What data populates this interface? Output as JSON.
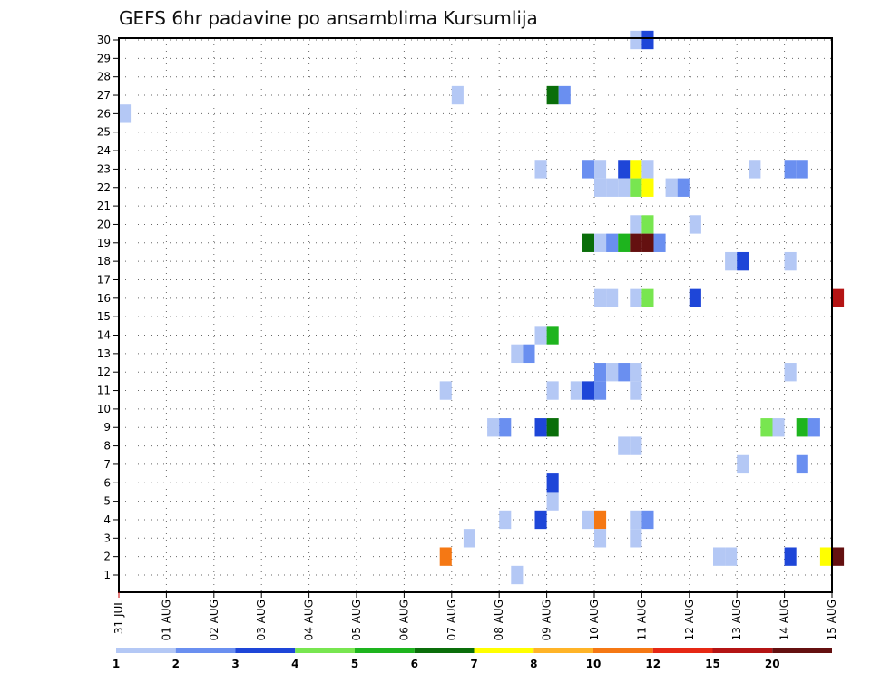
{
  "chart_data": {
    "type": "heatmap",
    "title": "GEFS 6hr padavine po ansamblima Kursumlija",
    "xlabel": "",
    "ylabel": "",
    "x_tick_labels": [
      "31 JUL",
      "01 AUG",
      "02 AUG",
      "03 AUG",
      "04 AUG",
      "05 AUG",
      "06 AUG",
      "07 AUG",
      "08 AUG",
      "09 AUG",
      "10 AUG",
      "11 AUG",
      "12 AUG",
      "13 AUG",
      "14 AUG",
      "15 AUG"
    ],
    "y_tick_labels": [
      "1",
      "2",
      "3",
      "4",
      "5",
      "6",
      "7",
      "8",
      "9",
      "10",
      "11",
      "12",
      "13",
      "14",
      "15",
      "16",
      "17",
      "18",
      "19",
      "20",
      "21",
      "22",
      "23",
      "24",
      "25",
      "26",
      "27",
      "28",
      "29",
      "30"
    ],
    "ylim": [
      1,
      30
    ],
    "grid": true,
    "time_step_hours": 6,
    "legend": {
      "placement": "bottom",
      "colors": [
        "#b4c8f5",
        "#6a8ff0",
        "#1e46d8",
        "#78e650",
        "#1eb41e",
        "#0a6e0a",
        "#ffff00",
        "#ffb428",
        "#f57814",
        "#e62814",
        "#b41414",
        "#641010"
      ],
      "labels": [
        "1",
        "2",
        "3",
        "4",
        "5",
        "6",
        "7",
        "8",
        "10",
        "12",
        "15",
        "20"
      ]
    },
    "cells": [
      {
        "member": 30,
        "step": 43,
        "value": 1.5
      },
      {
        "member": 30,
        "step": 44,
        "value": 3.5
      },
      {
        "member": 27,
        "step": 28,
        "value": 1.5
      },
      {
        "member": 27,
        "step": 36,
        "value": 6.5
      },
      {
        "member": 27,
        "step": 37,
        "value": 2.5
      },
      {
        "member": 26,
        "step": 0,
        "value": 1.5
      },
      {
        "member": 23,
        "step": 35,
        "value": 1.5
      },
      {
        "member": 23,
        "step": 39,
        "value": 2.5
      },
      {
        "member": 23,
        "step": 40,
        "value": 1.5
      },
      {
        "member": 23,
        "step": 42,
        "value": 3.5
      },
      {
        "member": 23,
        "step": 43,
        "value": 7.5
      },
      {
        "member": 23,
        "step": 44,
        "value": 1.5
      },
      {
        "member": 23,
        "step": 53,
        "value": 1.5
      },
      {
        "member": 23,
        "step": 56,
        "value": 2.5
      },
      {
        "member": 23,
        "step": 57,
        "value": 2.5
      },
      {
        "member": 22,
        "step": 40,
        "value": 1.5
      },
      {
        "member": 22,
        "step": 41,
        "value": 1.5
      },
      {
        "member": 22,
        "step": 42,
        "value": 1.5
      },
      {
        "member": 22,
        "step": 43,
        "value": 4.5
      },
      {
        "member": 22,
        "step": 44,
        "value": 7.5
      },
      {
        "member": 22,
        "step": 46,
        "value": 1.5
      },
      {
        "member": 22,
        "step": 47,
        "value": 2.5
      },
      {
        "member": 20,
        "step": 43,
        "value": 1.5
      },
      {
        "member": 20,
        "step": 44,
        "value": 4.5
      },
      {
        "member": 20,
        "step": 48,
        "value": 1.5
      },
      {
        "member": 19,
        "step": 39,
        "value": 6.5
      },
      {
        "member": 19,
        "step": 40,
        "value": 1.5
      },
      {
        "member": 19,
        "step": 41,
        "value": 2.5
      },
      {
        "member": 19,
        "step": 42,
        "value": 5.5
      },
      {
        "member": 19,
        "step": 43,
        "value": 22
      },
      {
        "member": 19,
        "step": 44,
        "value": 22
      },
      {
        "member": 19,
        "step": 45,
        "value": 2.5
      },
      {
        "member": 18,
        "step": 51,
        "value": 1.5
      },
      {
        "member": 18,
        "step": 52,
        "value": 3.5
      },
      {
        "member": 18,
        "step": 56,
        "value": 1.5
      },
      {
        "member": 16,
        "step": 40,
        "value": 1.5
      },
      {
        "member": 16,
        "step": 41,
        "value": 1.5
      },
      {
        "member": 16,
        "step": 43,
        "value": 1.5
      },
      {
        "member": 16,
        "step": 44,
        "value": 4.5
      },
      {
        "member": 16,
        "step": 48,
        "value": 3.5
      },
      {
        "member": 16,
        "step": 60,
        "value": 16
      },
      {
        "member": 14,
        "step": 35,
        "value": 1.5
      },
      {
        "member": 14,
        "step": 36,
        "value": 5.5
      },
      {
        "member": 13,
        "step": 33,
        "value": 1.5
      },
      {
        "member": 13,
        "step": 34,
        "value": 2.5
      },
      {
        "member": 12,
        "step": 40,
        "value": 2.5
      },
      {
        "member": 12,
        "step": 41,
        "value": 1.5
      },
      {
        "member": 12,
        "step": 42,
        "value": 2.5
      },
      {
        "member": 12,
        "step": 43,
        "value": 1.5
      },
      {
        "member": 12,
        "step": 56,
        "value": 1.5
      },
      {
        "member": 11,
        "step": 27,
        "value": 1.5
      },
      {
        "member": 11,
        "step": 36,
        "value": 1.5
      },
      {
        "member": 11,
        "step": 38,
        "value": 1.5
      },
      {
        "member": 11,
        "step": 39,
        "value": 3.5
      },
      {
        "member": 11,
        "step": 40,
        "value": 2.5
      },
      {
        "member": 11,
        "step": 43,
        "value": 1.5
      },
      {
        "member": 9,
        "step": 31,
        "value": 1.5
      },
      {
        "member": 9,
        "step": 32,
        "value": 2.5
      },
      {
        "member": 9,
        "step": 35,
        "value": 3.5
      },
      {
        "member": 9,
        "step": 36,
        "value": 6.5
      },
      {
        "member": 9,
        "step": 54,
        "value": 4.5
      },
      {
        "member": 9,
        "step": 55,
        "value": 1.5
      },
      {
        "member": 9,
        "step": 57,
        "value": 5.5
      },
      {
        "member": 9,
        "step": 58,
        "value": 2.5
      },
      {
        "member": 8,
        "step": 42,
        "value": 1.5
      },
      {
        "member": 8,
        "step": 43,
        "value": 1.5
      },
      {
        "member": 7,
        "step": 52,
        "value": 1.5
      },
      {
        "member": 7,
        "step": 57,
        "value": 2.5
      },
      {
        "member": 6,
        "step": 36,
        "value": 3.5
      },
      {
        "member": 5,
        "step": 36,
        "value": 1.5
      },
      {
        "member": 4,
        "step": 32,
        "value": 1.5
      },
      {
        "member": 4,
        "step": 35,
        "value": 3.5
      },
      {
        "member": 4,
        "step": 39,
        "value": 1.5
      },
      {
        "member": 4,
        "step": 40,
        "value": 11
      },
      {
        "member": 4,
        "step": 43,
        "value": 1.5
      },
      {
        "member": 4,
        "step": 44,
        "value": 2.5
      },
      {
        "member": 3,
        "step": 29,
        "value": 1.5
      },
      {
        "member": 3,
        "step": 40,
        "value": 1.5
      },
      {
        "member": 3,
        "step": 43,
        "value": 1.5
      },
      {
        "member": 2,
        "step": 27,
        "value": 11
      },
      {
        "member": 2,
        "step": 50,
        "value": 1.5
      },
      {
        "member": 2,
        "step": 51,
        "value": 1.5
      },
      {
        "member": 2,
        "step": 56,
        "value": 3.5
      },
      {
        "member": 2,
        "step": 59,
        "value": 7.5
      },
      {
        "member": 2,
        "step": 60,
        "value": 22
      },
      {
        "member": 1,
        "step": 33,
        "value": 1.5
      }
    ]
  }
}
